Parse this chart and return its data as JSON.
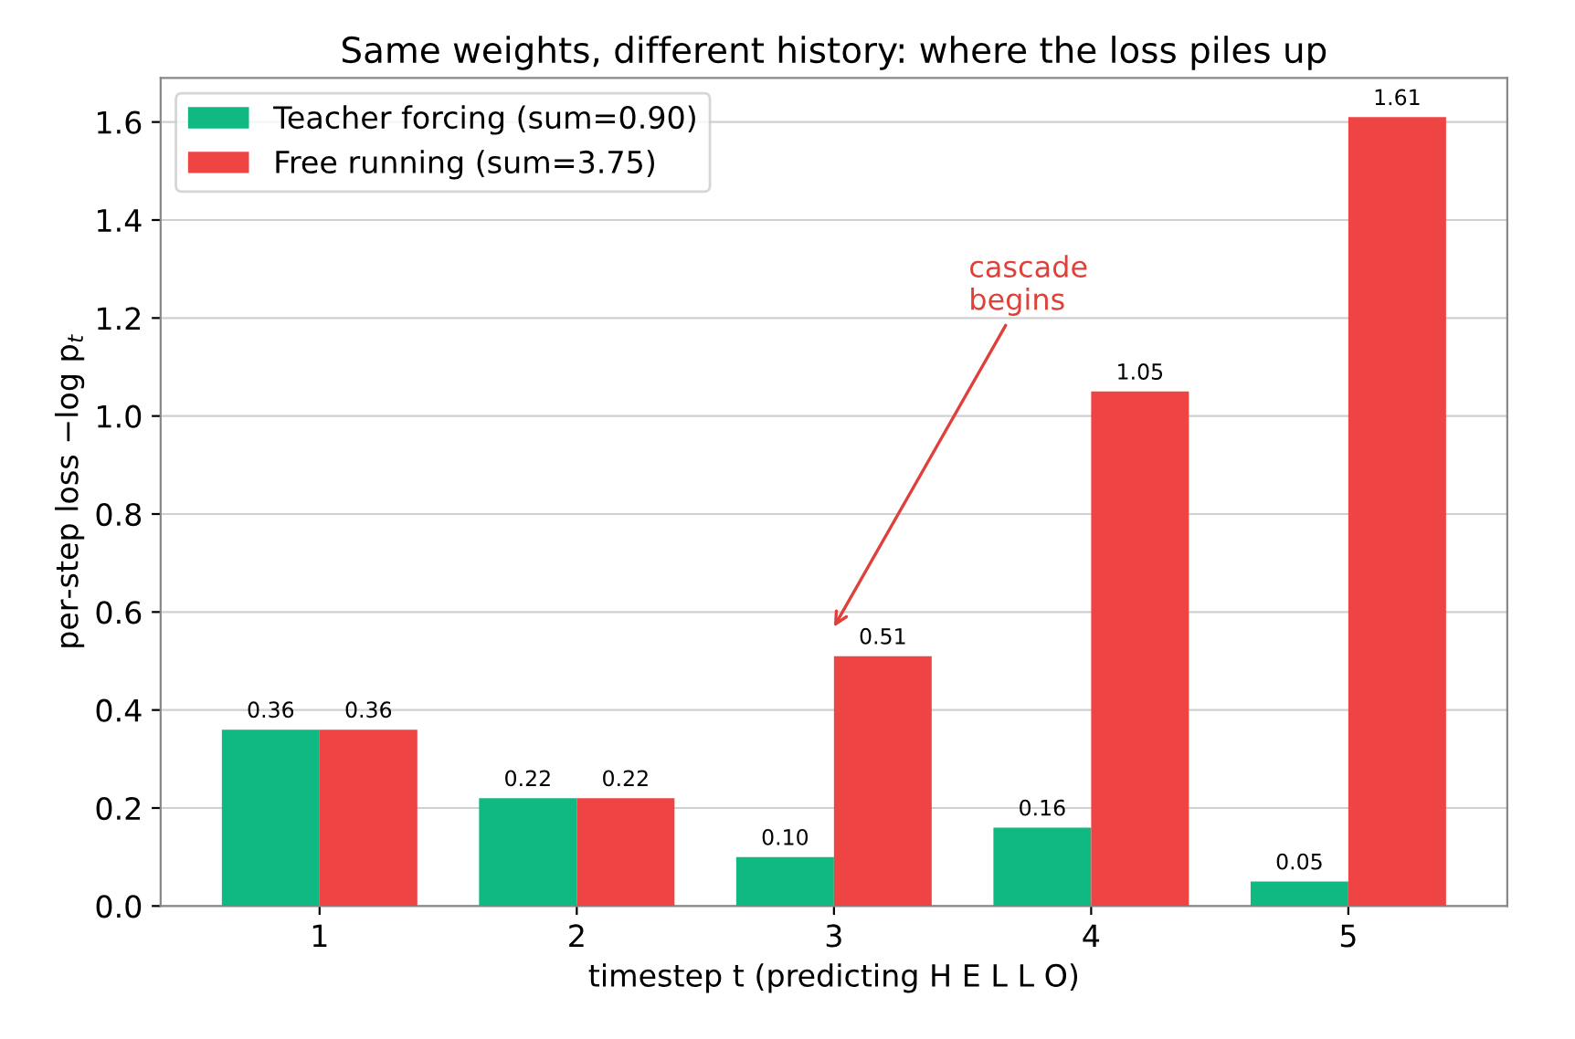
{
  "chart_data": {
    "type": "bar",
    "title": "Same weights, different history: where the loss piles up",
    "xlabel": "timestep t (predicting H E L L O)",
    "ylabel": "per-step loss −log p$_{t}$",
    "categories": [
      "1",
      "2",
      "3",
      "4",
      "5"
    ],
    "series": [
      {
        "name": "Teacher forcing (sum=0.90)",
        "color": "#10b981",
        "values": [
          0.36,
          0.22,
          0.1,
          0.16,
          0.05
        ],
        "value_labels": [
          "0.36",
          "0.22",
          "0.10",
          "0.16",
          "0.05"
        ]
      },
      {
        "name": "Free running (sum=3.75)",
        "color": "#ef4444",
        "values": [
          0.36,
          0.22,
          0.51,
          1.05,
          1.61
        ],
        "value_labels": [
          "0.36",
          "0.22",
          "0.51",
          "1.05",
          "1.61"
        ]
      }
    ],
    "ylim": [
      0,
      1.69
    ],
    "yticks": [
      {
        "value": 0,
        "label": "0.0"
      },
      0.2,
      0.4,
      0.6,
      0.8,
      {
        "value": 1,
        "label": "1.0"
      },
      1.2,
      1.4,
      1.6
    ],
    "annotations": [
      "cascade\nbegins"
    ],
    "grid": "y",
    "legend": "top left"
  }
}
